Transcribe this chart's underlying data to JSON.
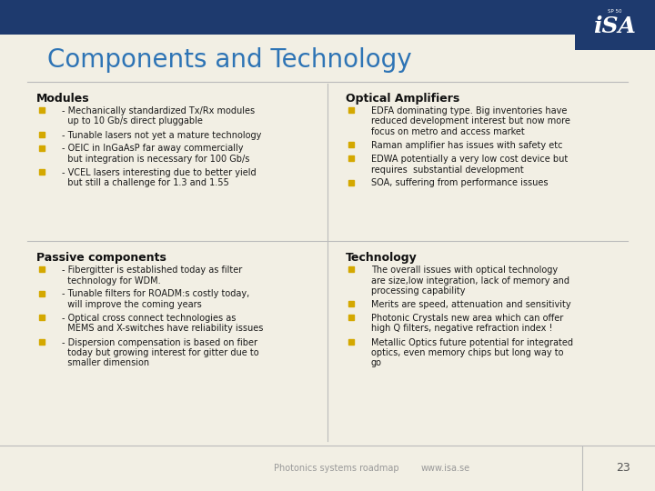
{
  "title": "Components and Technology",
  "title_color": "#2E74B5",
  "title_fontsize": 20,
  "bg_color": "#F2EFE4",
  "top_bar_color": "#1E3A6E",
  "logo_bg_color": "#1E3A6E",
  "logo_text": "iSA",
  "logo_sub": "SP 50",
  "bullet_color": "#D4A800",
  "text_color": "#1a1a1a",
  "footer_text_left": "Photonics systems roadmap",
  "footer_text_mid": "www.isa.se",
  "footer_page": "23",
  "sections": [
    {
      "title": "Modules",
      "col": 0,
      "row": 0,
      "bullets": [
        [
          "- Mechanically standardized Tx/Rx modules",
          "  up to 10 Gb/s direct pluggable"
        ],
        [
          "- Tunable lasers not yet a mature technology"
        ],
        [
          "- OEIC in InGaAsP far away commercially",
          "  but integration is necessary for 100 Gb/s"
        ],
        [
          "- VCEL lasers interesting due to better yield",
          "  but still a challenge for 1.3 and 1.55"
        ]
      ]
    },
    {
      "title": "Passive components",
      "col": 0,
      "row": 1,
      "bullets": [
        [
          "- Fibergitter is established today as filter",
          "  technology for WDM."
        ],
        [
          "- Tunable filters for ROADM:s costly today,",
          "  will improve the coming years"
        ],
        [
          "- Optical cross connect technologies as",
          "  MEMS and X-switches have reliability issues"
        ],
        [
          "- Dispersion compensation is based on fiber",
          "  today but growing interest for gitter due to",
          "  smaller dimension"
        ]
      ]
    },
    {
      "title": "Optical Amplifiers",
      "col": 1,
      "row": 0,
      "bullets": [
        [
          "EDFA dominating type. Big inventories have",
          "reduced development interest but now more",
          "focus on metro and access market"
        ],
        [
          "Raman amplifier has issues with safety etc"
        ],
        [
          "EDWA potentially a very low cost device but",
          "requires  substantial development"
        ],
        [
          "SOA, suffering from performance issues"
        ]
      ]
    },
    {
      "title": "Technology",
      "col": 1,
      "row": 1,
      "bullets": [
        [
          "The overall issues with optical technology",
          "are size,low integration, lack of memory and",
          "processing capability"
        ],
        [
          "Merits are speed, attenuation and sensitivity"
        ],
        [
          "Photonic Crystals new area which can offer",
          "high Q filters, negative refraction index !"
        ],
        [
          "Metallic Optics future potential for integrated",
          "optics, even memory chips but long way to",
          "go"
        ]
      ]
    }
  ]
}
